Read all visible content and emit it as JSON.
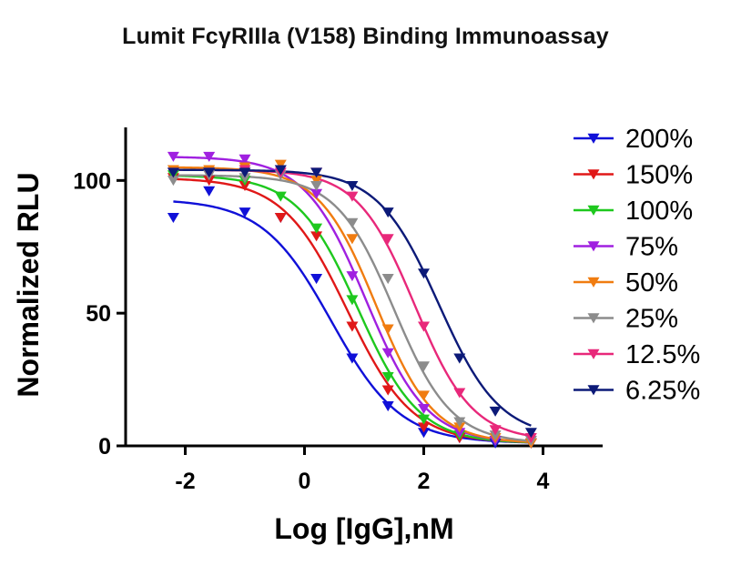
{
  "chart_data": {
    "type": "line",
    "title": "Lumit FcγRIIIa (V158) Binding Immunoassay",
    "xlabel": "Log [IgG],nM",
    "ylabel": "Normalized RLU",
    "xlim": [
      -3.0,
      5.0
    ],
    "ylim": [
      0,
      120
    ],
    "xticks": [
      -2,
      0,
      2,
      4
    ],
    "yticks": [
      0,
      50,
      100
    ],
    "grid": false,
    "legend": "right",
    "series": [
      {
        "name": "200%",
        "color": "#1010d8",
        "x": [
          -2.2,
          -1.6,
          -1.0,
          -0.4,
          0.2,
          0.8,
          1.4,
          2.0,
          2.6,
          3.2,
          3.8
        ],
        "y": [
          86,
          96,
          88,
          86,
          63,
          33,
          15,
          5,
          3,
          1,
          1
        ]
      },
      {
        "name": "150%",
        "color": "#e01818",
        "x": [
          -2.2,
          -1.6,
          -1.0,
          -0.4,
          0.2,
          0.8,
          1.4,
          2.0,
          2.6,
          3.2,
          3.8
        ],
        "y": [
          101,
          100,
          98,
          86,
          79,
          45,
          21,
          7,
          3,
          2,
          1
        ]
      },
      {
        "name": "100%",
        "color": "#1ec81e",
        "x": [
          -2.2,
          -1.6,
          -1.0,
          -0.4,
          0.2,
          0.8,
          1.4,
          2.0,
          2.6,
          3.2,
          3.8
        ],
        "y": [
          102,
          103,
          100,
          94,
          82,
          55,
          26,
          10,
          4,
          2,
          1
        ]
      },
      {
        "name": "75%",
        "color": "#a020e0",
        "x": [
          -2.2,
          -1.6,
          -1.0,
          -0.4,
          0.2,
          0.8,
          1.4,
          2.0,
          2.6,
          3.2,
          3.8
        ],
        "y": [
          109,
          109,
          108,
          104,
          95,
          64,
          35,
          14,
          5,
          2,
          1
        ]
      },
      {
        "name": "50%",
        "color": "#f07c10",
        "x": [
          -2.2,
          -1.6,
          -1.0,
          -0.4,
          0.2,
          0.8,
          1.4,
          2.0,
          2.6,
          3.2,
          3.8
        ],
        "y": [
          104,
          104,
          105,
          106,
          100,
          78,
          44,
          19,
          7,
          3,
          1
        ]
      },
      {
        "name": "25%",
        "color": "#8c8c8c",
        "x": [
          -2.2,
          -1.6,
          -1.0,
          -0.4,
          0.2,
          0.8,
          1.4,
          2.0,
          2.6,
          3.2,
          3.8
        ],
        "y": [
          100,
          102,
          101,
          102,
          98,
          84,
          63,
          30,
          9,
          4,
          2
        ]
      },
      {
        "name": "12.5%",
        "color": "#e8287a",
        "x": [
          -2.2,
          -1.6,
          -1.0,
          -0.4,
          0.2,
          0.8,
          1.4,
          2.0,
          2.6,
          3.2,
          3.8
        ],
        "y": [
          103,
          103,
          104,
          103,
          103,
          94,
          78,
          45,
          20,
          6,
          3
        ]
      },
      {
        "name": "6.25%",
        "color": "#0c1a78",
        "x": [
          -2.2,
          -1.6,
          -1.0,
          -0.4,
          0.2,
          0.8,
          1.4,
          2.0,
          2.6,
          3.2,
          3.8
        ],
        "y": [
          103,
          103,
          103,
          104,
          103,
          98,
          88,
          65,
          33,
          13,
          5
        ]
      }
    ],
    "fits": [
      {
        "name": "200%",
        "top": 93,
        "bottom": 1,
        "logEC50": 0.45,
        "hill": -0.75
      },
      {
        "name": "150%",
        "top": 101,
        "bottom": 1,
        "logEC50": 0.72,
        "hill": -0.8
      },
      {
        "name": "100%",
        "top": 102,
        "bottom": 1,
        "logEC50": 0.9,
        "hill": -0.85
      },
      {
        "name": "75%",
        "top": 109,
        "bottom": 1,
        "logEC50": 1.03,
        "hill": -0.85
      },
      {
        "name": "50%",
        "top": 105,
        "bottom": 1,
        "logEC50": 1.2,
        "hill": -0.9
      },
      {
        "name": "25%",
        "top": 102,
        "bottom": 1,
        "logEC50": 1.5,
        "hill": -0.9
      },
      {
        "name": "12.5%",
        "top": 104,
        "bottom": 2,
        "logEC50": 1.85,
        "hill": -0.9
      },
      {
        "name": "6.25%",
        "top": 104,
        "bottom": 3,
        "logEC50": 2.25,
        "hill": -0.85
      }
    ]
  }
}
